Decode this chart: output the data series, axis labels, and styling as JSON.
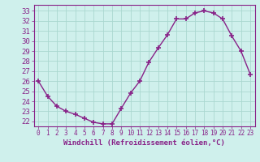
{
  "x": [
    0,
    1,
    2,
    3,
    4,
    5,
    6,
    7,
    8,
    9,
    10,
    11,
    12,
    13,
    14,
    15,
    16,
    17,
    18,
    19,
    20,
    21,
    22,
    23
  ],
  "y": [
    26.0,
    24.5,
    23.5,
    23.0,
    22.7,
    22.3,
    21.9,
    21.75,
    21.75,
    23.3,
    24.8,
    26.0,
    27.9,
    29.3,
    30.6,
    32.2,
    32.2,
    32.8,
    33.0,
    32.8,
    32.2,
    30.5,
    29.0,
    26.7
  ],
  "line_color": "#882288",
  "marker": "+",
  "marker_size": 4,
  "marker_lw": 1.2,
  "bg_color": "#cff0ec",
  "grid_color": "#aad8d0",
  "xlabel": "Windchill (Refroidissement éolien,°C)",
  "ylim_min": 21.5,
  "ylim_max": 33.6,
  "xlim_min": -0.5,
  "xlim_max": 23.5,
  "yticks": [
    22,
    23,
    24,
    25,
    26,
    27,
    28,
    29,
    30,
    31,
    32,
    33
  ],
  "xticks": [
    0,
    1,
    2,
    3,
    4,
    5,
    6,
    7,
    8,
    9,
    10,
    11,
    12,
    13,
    14,
    15,
    16,
    17,
    18,
    19,
    20,
    21,
    22,
    23
  ],
  "tick_label_color": "#882288",
  "xlabel_color": "#882288",
  "xlabel_fontsize": 6.5,
  "ytick_fontsize": 6.5,
  "xtick_fontsize": 5.5,
  "linewidth": 1.0
}
